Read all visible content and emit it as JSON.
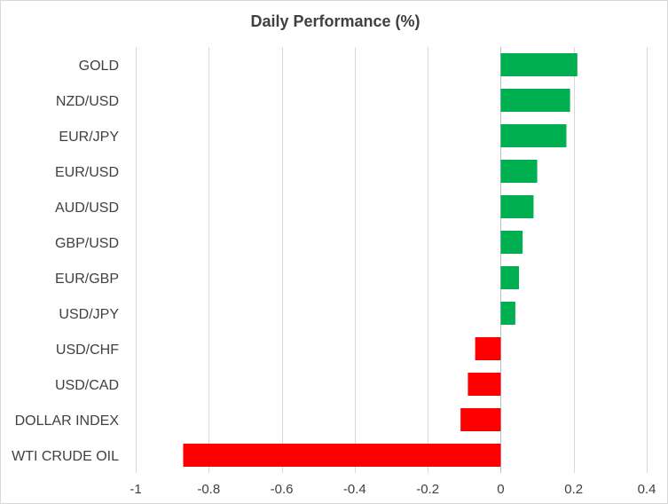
{
  "chart_data": {
    "type": "bar",
    "orientation": "horizontal",
    "title": "Daily Performance (%)",
    "xlabel": "",
    "ylabel": "",
    "xlim": [
      -1,
      0.4
    ],
    "x_ticks": [
      -1,
      -0.8,
      -0.6,
      -0.4,
      -0.2,
      0,
      0.2,
      0.4
    ],
    "x_tick_labels": [
      "-1",
      "-0.8",
      "-0.6",
      "-0.4",
      "-0.2",
      "0",
      "0.2",
      "0.4"
    ],
    "grid": true,
    "legend": "none",
    "categories": [
      "GOLD",
      "NZD/USD",
      "EUR/JPY",
      "EUR/USD",
      "AUD/USD",
      "GBP/USD",
      "EUR/GBP",
      "USD/JPY",
      "USD/CHF",
      "USD/CAD",
      "DOLLAR INDEX",
      "WTI CRUDE OIL"
    ],
    "values": [
      0.21,
      0.19,
      0.18,
      0.1,
      0.09,
      0.06,
      0.05,
      0.04,
      -0.07,
      -0.09,
      -0.11,
      -0.87
    ],
    "colors": {
      "positive": "#00b050",
      "negative": "#ff0000",
      "grid": "#d9d9d9",
      "text": "#404040"
    }
  }
}
